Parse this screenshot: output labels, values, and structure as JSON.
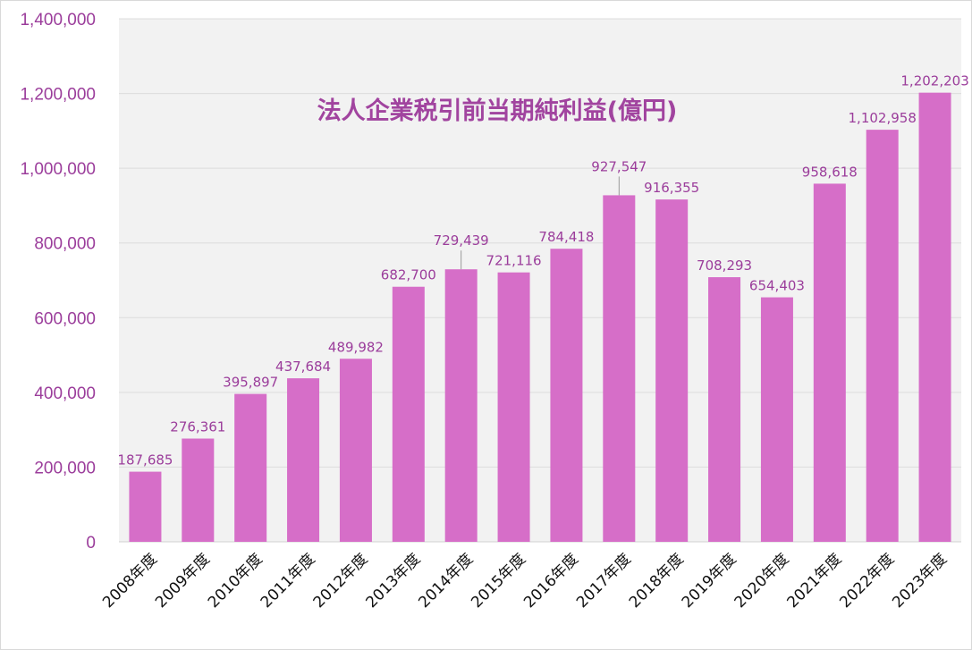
{
  "chart_data": {
    "type": "bar",
    "title": "法人企業税引前当期純利益(億円)",
    "xlabel": "",
    "ylabel": "",
    "categories": [
      "2008年度",
      "2009年度",
      "2010年度",
      "2011年度",
      "2012年度",
      "2013年度",
      "2014年度",
      "2015年度",
      "2016年度",
      "2017年度",
      "2018年度",
      "2019年度",
      "2020年度",
      "2021年度",
      "2022年度",
      "2023年度"
    ],
    "values": [
      187685,
      276361,
      395897,
      437684,
      489982,
      682700,
      729439,
      721116,
      784418,
      927547,
      916355,
      708293,
      654403,
      958618,
      1102958,
      1202203
    ],
    "value_labels": [
      "187,685",
      "276,361",
      "395,897",
      "437,684",
      "489,982",
      "682,700",
      "729,439",
      "721,116",
      "784,418",
      "927,547",
      "916,355",
      "708,293",
      "654,403",
      "958,618",
      "1,102,958",
      "1,202,203"
    ],
    "ylim": [
      0,
      1400000
    ],
    "yticks": [
      "0",
      "200,000",
      "400,000",
      "600,000",
      "800,000",
      "1,000,000",
      "1,200,000",
      "1,400,000"
    ],
    "grid": true,
    "legend": "none",
    "colors": {
      "bar": "#d66ec8",
      "plot_background": "#f2f2f2",
      "axis_text": "#9b3d9b",
      "title": "#a1449f"
    }
  }
}
